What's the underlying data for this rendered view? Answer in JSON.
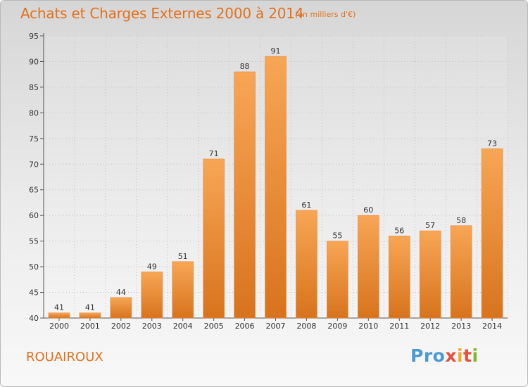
{
  "header": {
    "title": "Achats et Charges Externes 2000 à 2014",
    "subtitle": "(en milliers d'€)"
  },
  "footer": {
    "commune": "ROUAIROUX",
    "logo": [
      "Pro",
      "x",
      "i",
      "t",
      "i"
    ]
  },
  "colors": {
    "accent": "#e2711d",
    "bar_light": "#f5a552",
    "bar_dark": "#d8741e"
  },
  "chart_data": {
    "type": "bar",
    "title": "Achats et Charges Externes 2000 à 2014",
    "subtitle": "(en milliers d'€)",
    "categories": [
      "2000",
      "2001",
      "2002",
      "2003",
      "2004",
      "2005",
      "2006",
      "2007",
      "2008",
      "2009",
      "2010",
      "2011",
      "2012",
      "2013",
      "2014"
    ],
    "values": [
      41,
      41,
      44,
      49,
      51,
      71,
      88,
      91,
      61,
      55,
      60,
      56,
      57,
      58,
      73
    ],
    "ylim": [
      40,
      95
    ],
    "yticks": [
      40,
      45,
      50,
      55,
      60,
      65,
      70,
      75,
      80,
      85,
      90,
      95
    ],
    "grid": true,
    "data_labels": true
  }
}
